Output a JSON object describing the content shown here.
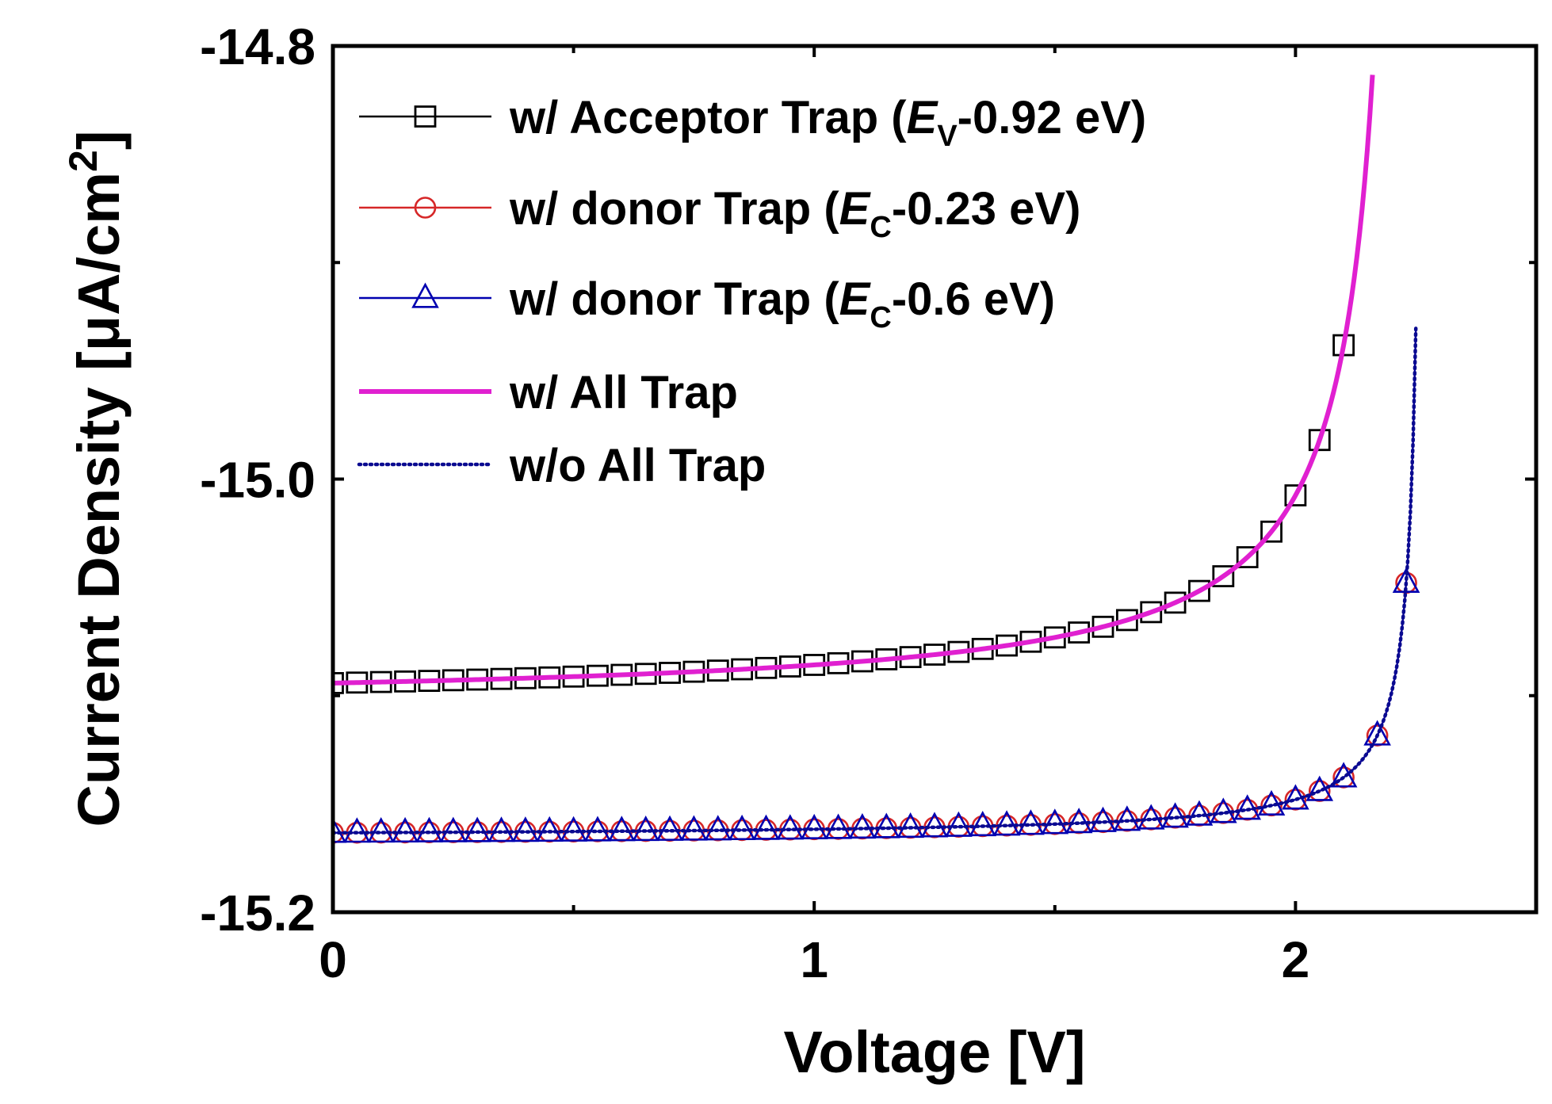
{
  "chart_data": {
    "type": "line",
    "title": "",
    "xlabel": "Voltage [V]",
    "ylabel": {
      "main": "Current Density [",
      "unit": "μA/cm",
      "sup": "2",
      "close": "]"
    },
    "xlim": [
      0,
      2.5
    ],
    "ylim": [
      -15.2,
      -14.8
    ],
    "x_ticks": [
      {
        "value": 0,
        "label": "0"
      },
      {
        "value": 1,
        "label": "1"
      },
      {
        "value": 2,
        "label": "2"
      }
    ],
    "x_minor_ticks": [
      0.5,
      1.5
    ],
    "y_ticks": [
      {
        "value": -14.8,
        "label": "-14.8"
      },
      {
        "value": -15.0,
        "label": "-15.0"
      },
      {
        "value": -15.2,
        "label": "-15.2"
      }
    ],
    "y_minor_ticks": [
      -14.9,
      -15.1
    ],
    "grid": false,
    "legend_position": "top-left",
    "series": [
      {
        "id": "acceptor",
        "label": {
          "pre": "w/ Acceptor Trap (",
          "sym": "E",
          "sub": "V",
          "post": "-0.92 eV)"
        },
        "color": "#000000",
        "marker": "square",
        "line": "solid",
        "model": {
          "A": -15.1046,
          "B": 0.0233,
          "Vb": 2.24
        },
        "x_start": 0,
        "x_end": 2.12,
        "marker_step": 0.05
      },
      {
        "id": "donor023",
        "label": {
          "pre": "w/ donor Trap (",
          "sym": "E",
          "sub": "C",
          "post": "-0.23 eV)"
        },
        "color": "#d62728",
        "marker": "circle",
        "line": "solid",
        "model": {
          "A": -15.1654,
          "B": 0.0047,
          "Vb": 2.27
        },
        "x_start": 0,
        "x_end": 2.25,
        "marker_step": 0.05,
        "marker_x": [
          2.1,
          2.17,
          2.23
        ]
      },
      {
        "id": "donor06",
        "label": {
          "pre": "w/ donor Trap (",
          "sym": "E",
          "sub": "C",
          "post": "-0.6 eV)"
        },
        "color": "#0000b0",
        "marker": "triangle",
        "line": "solid",
        "model": {
          "A": -15.1654,
          "B": 0.0047,
          "Vb": 2.27
        },
        "x_start": 0,
        "x_end": 2.25,
        "marker_step": 0.05,
        "marker_x": [
          2.1,
          2.17,
          2.23
        ]
      },
      {
        "id": "alltrap",
        "label": {
          "pre": "w/ All Trap",
          "sym": "",
          "sub": "",
          "post": ""
        },
        "color": "#e020d0",
        "marker": "none",
        "line": "thick",
        "model": {
          "A": -15.1046,
          "B": 0.0233,
          "Vb": 2.24
        },
        "x_start": 0,
        "x_end": 2.16
      },
      {
        "id": "notrap",
        "label": {
          "pre": "w/o All Trap",
          "sym": "",
          "sub": "",
          "post": ""
        },
        "color": "#0a0a90",
        "marker": "none",
        "line": "dotted",
        "model": {
          "A": -15.1654,
          "B": 0.0047,
          "Vb": 2.27
        },
        "x_start": 0,
        "x_end": 2.25
      }
    ]
  }
}
